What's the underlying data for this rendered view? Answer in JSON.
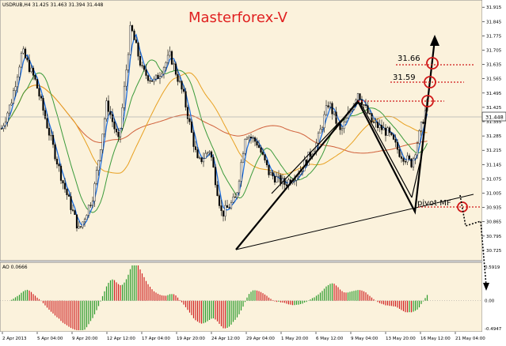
{
  "header": {
    "symbol_line": "USDRUB,H4  31.425 31.463 31.394 31.448",
    "watermark": "Masterforex-V"
  },
  "annotations": {
    "level_1": "31.66",
    "level_2": "31.59",
    "pivot_label": "pivot MF"
  },
  "colors": {
    "background": "#fbf2dc",
    "bull_candle": "#000000",
    "bear_candle": "#000000",
    "ma_fast": "#1e6fe0",
    "ma_green": "#3a9a3a",
    "ma_orange": "#e8a020",
    "ma_red": "#d0603a",
    "watermark": "#e02020",
    "target_circle": "#d01818",
    "ao_up": "#2a9a2a",
    "ao_down": "#d02020"
  },
  "chart_data": [
    {
      "type": "candlestick",
      "title": "USDRUB,H4",
      "last_price": 31.448,
      "ylim": [
        30.69,
        31.935
      ],
      "y_ticks": [
        "31.915",
        "31.845",
        "31.775",
        "31.705",
        "31.635",
        "31.565",
        "31.495",
        "31.425",
        "31.355",
        "31.285",
        "31.215",
        "31.145",
        "31.075",
        "31.005",
        "30.935",
        "30.865",
        "30.795",
        "30.725"
      ],
      "x_ticks": [
        "2 Apr 2013",
        "5 Apr 04:00",
        "9 Apr 20:00",
        "12 Apr 12:00",
        "17 Apr 04:00",
        "19 Apr 20:00",
        "24 Apr 12:00",
        "29 Apr 04:00",
        "1 May 20:00",
        "6 May 12:00",
        "9 May 04:00",
        "13 May 20:00",
        "16 May 12:00",
        "21 May 04:00"
      ],
      "series": [
        {
          "name": "MA fast",
          "role": "ma"
        },
        {
          "name": "MA green",
          "role": "ma"
        },
        {
          "name": "MA orange",
          "role": "ma"
        },
        {
          "name": "MA red",
          "role": "ma"
        }
      ]
    },
    {
      "type": "bar",
      "title": "AO 0.0666",
      "ylim": [
        -0.4947,
        0.5919
      ],
      "y_ticks": [
        "0.5919",
        "0.00",
        "-0.4947"
      ]
    }
  ]
}
